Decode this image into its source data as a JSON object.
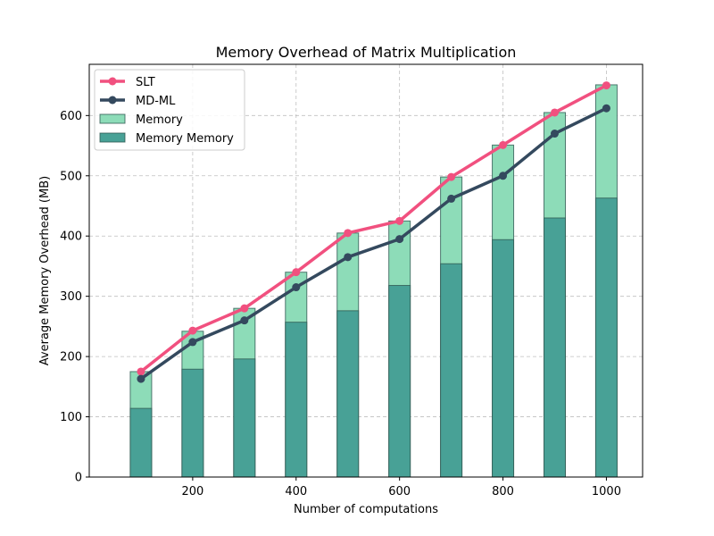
{
  "chart_data": {
    "type": "bar",
    "title": "Memory Overhead of Matrix Multiplication",
    "xlabel": "Number of computations",
    "ylabel": "Average Memory Overhead (MB)",
    "x": [
      100,
      200,
      300,
      400,
      500,
      600,
      700,
      800,
      900,
      1000
    ],
    "xlim": [
      0,
      1070
    ],
    "ylim": [
      0,
      685
    ],
    "xticks": [
      200,
      400,
      600,
      800,
      1000
    ],
    "yticks": [
      0,
      100,
      200,
      300,
      400,
      500,
      600
    ],
    "grid": true,
    "legend_position": "top-left",
    "bars": [
      {
        "name": "Memory",
        "values": [
          175,
          242,
          280,
          340,
          405,
          425,
          498,
          551,
          605,
          651
        ],
        "color": "#8ddcb8"
      },
      {
        "name": "Memory Memory",
        "values": [
          114,
          179,
          196,
          257,
          276,
          318,
          354,
          394,
          430,
          463
        ],
        "color": "#48a196"
      }
    ],
    "lines": [
      {
        "name": "SLT",
        "values": [
          175,
          243,
          280,
          340,
          405,
          425,
          498,
          551,
          605,
          650
        ],
        "color": "#f1507f"
      },
      {
        "name": "MD-ML",
        "values": [
          163,
          224,
          260,
          315,
          365,
          395,
          462,
          500,
          570,
          612
        ],
        "color": "#34495e"
      }
    ]
  }
}
